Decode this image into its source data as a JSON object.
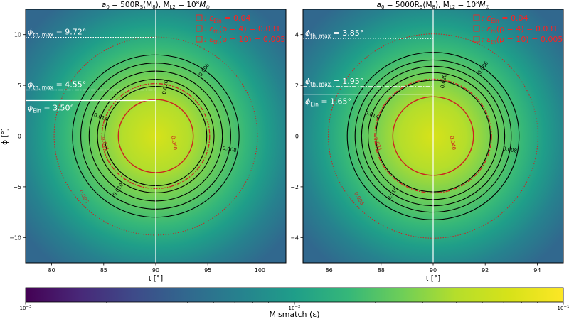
{
  "chart_data": [
    {
      "type": "heatmap",
      "title_parts": {
        "a": "a",
        "a_sub": "0",
        "eq": " = 500R",
        "S_sub": "S",
        "tail": "(M",
        "M_sub": "8",
        "close": "),  M",
        "L_sub": "L2",
        "mid": " = 10",
        "sup": "8",
        "mass": "M",
        "sun_sub": "⊙"
      },
      "title": "a0 = 500RS(M8),  ML2 = 10^8 M⊙",
      "xlabel": "ι [°]",
      "ylabel": "ϕ [°]",
      "xlim": [
        77.5,
        102.5
      ],
      "ylim": [
        -12.5,
        12.5
      ],
      "xticks": [
        80,
        85,
        90,
        95,
        100
      ],
      "yticks": [
        -10,
        -5,
        0,
        5,
        10
      ],
      "center": [
        90,
        0
      ],
      "circle_radii_deg": {
        "rho4": 3.6,
        "rho10": 4.5
      },
      "contours": [
        {
          "level": "0.006",
          "radius": 8.0,
          "color": "#000000"
        },
        {
          "level": "0.008",
          "radius": 7.2,
          "color": "#000000"
        },
        {
          "level": "0.010",
          "radius": 6.4,
          "color": "#000000"
        },
        {
          "level": "0.014",
          "radius": 5.6,
          "color": "#000000"
        },
        {
          "level": "0.020",
          "radius": 4.9,
          "color": "#000000"
        }
      ],
      "hlines": [
        {
          "label_main": "ϕ",
          "label_sub": "th, max",
          "value_text": " = 9.72°",
          "y": 9.72,
          "style": "dotted"
        },
        {
          "label_main": "ϕ",
          "label_sub": "th, max",
          "value_text": " = 4.55°",
          "y": 4.55,
          "style": "dashdot"
        },
        {
          "label_main": "ϕ",
          "label_sub": "Ein",
          "value_text": " = 3.50°",
          "y": 3.5,
          "style": "solid"
        }
      ],
      "vline_x": 90,
      "legend": [
        {
          "sym": "ε",
          "sub": "Ein",
          "text": " = 0.04"
        },
        {
          "sym": "ε",
          "sub": "th",
          "text": "(ρ = 4) = 0.031"
        },
        {
          "sym": "ε",
          "sub": "th",
          "text": "(ρ = 10) = 0.005"
        }
      ],
      "red_contour_labels": [
        "0.031",
        "0.040",
        "0.005"
      ]
    },
    {
      "type": "heatmap",
      "title_parts": {
        "a": "a",
        "a_sub": "0",
        "eq": " = 5000R",
        "S_sub": "S",
        "tail": "(M",
        "M_sub": "8",
        "close": "),  M",
        "L_sub": "L2",
        "mid": " = 10",
        "sup": "8",
        "mass": "M",
        "sun_sub": "⊙"
      },
      "title": "a0 = 5000RS(M8),  ML2 = 10^8 M⊙",
      "xlabel": "ι [°]",
      "ylabel": "",
      "xlim": [
        85.0,
        95.0
      ],
      "ylim": [
        -5.0,
        5.0
      ],
      "xticks": [
        86,
        88,
        90,
        92,
        94
      ],
      "yticks": [
        -4,
        -2,
        0,
        2,
        4
      ],
      "center": [
        90,
        0
      ],
      "circle_radii_deg": {
        "rho4": 1.55,
        "rho10": 1.95
      },
      "contours": [
        {
          "level": "0.006",
          "radius": 3.3,
          "color": "#000000"
        },
        {
          "level": "0.008",
          "radius": 3.0,
          "color": "#000000"
        },
        {
          "level": "0.010",
          "radius": 2.75,
          "color": "#000000"
        },
        {
          "level": "0.014",
          "radius": 2.5,
          "color": "#000000"
        },
        {
          "level": "0.020",
          "radius": 2.2,
          "color": "#000000"
        }
      ],
      "hlines": [
        {
          "label_main": "ϕ",
          "label_sub": "th, max",
          "value_text": " = 3.85°",
          "y": 3.85,
          "style": "dotted"
        },
        {
          "label_main": "ϕ",
          "label_sub": "th, max",
          "value_text": " = 1.95°",
          "y": 1.95,
          "style": "dashdot"
        },
        {
          "label_main": "ϕ",
          "label_sub": "Ein",
          "value_text": " = 1.65°",
          "y": 1.65,
          "style": "solid"
        }
      ],
      "vline_x": 90,
      "legend": [
        {
          "sym": "ε",
          "sub": "Ein",
          "text": " = 0.04"
        },
        {
          "sym": "ε",
          "sub": "th",
          "text": "(ρ = 4) = 0.031"
        },
        {
          "sym": "ε",
          "sub": "th",
          "text": "(ρ = 10) = 0.005"
        }
      ],
      "red_contour_labels": [
        "0.031",
        "0.040",
        "0.005"
      ]
    }
  ],
  "colorbar": {
    "label": "Mismatch (ε)",
    "scale": "log",
    "range": [
      0.001,
      0.1
    ],
    "tick_base": "10",
    "ticks": [
      {
        "exp": "−3",
        "value": 0.001
      },
      {
        "exp": "−2",
        "value": 0.01
      },
      {
        "exp": "−1",
        "value": 0.1
      }
    ]
  },
  "colors": {
    "viridis": [
      "#440154",
      "#482878",
      "#3e4a89",
      "#31688e",
      "#26828e",
      "#1f9e89",
      "#35b779",
      "#6ece58",
      "#b5de2b",
      "#d7e219",
      "#e7e419"
    ],
    "red": "#ff2020",
    "contour_red": "#cc2222"
  }
}
